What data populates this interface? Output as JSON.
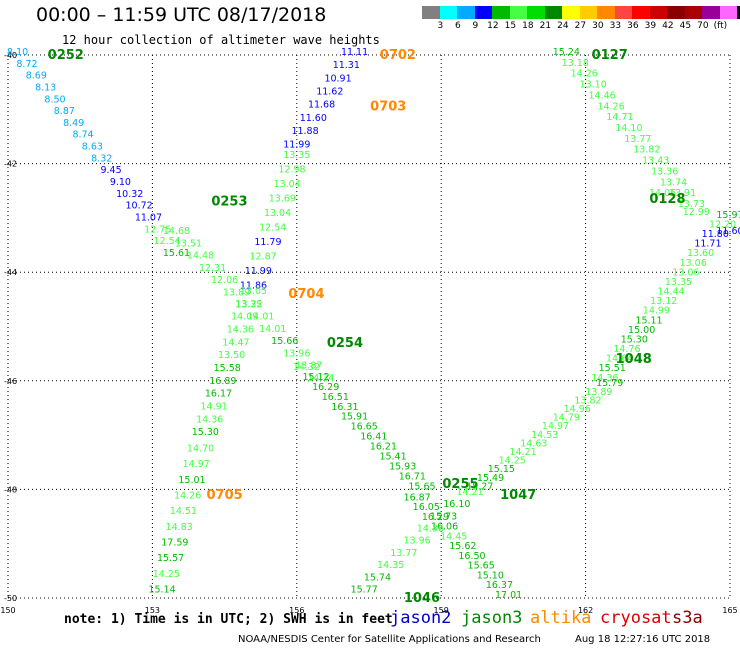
{
  "header": {
    "title": "00:00 – 11:59 UTC 08/17/2018",
    "subtitle": "12 hour collection of altimeter wave heights"
  },
  "legend": {
    "colors": [
      "#808080",
      "#00ffff",
      "#00aaff",
      "#0000ff",
      "#00bb00",
      "#44ff44",
      "#00dd00",
      "#008800",
      "#ffff00",
      "#ffcc00",
      "#ff8800",
      "#ff4444",
      "#ff0000",
      "#cc0000",
      "#880000",
      "#aa0000",
      "#990099",
      "#ff66ff",
      "#000000"
    ],
    "ticks": [
      "3",
      "6",
      "9",
      "12",
      "15",
      "18",
      "21",
      "24",
      "27",
      "30",
      "33",
      "36",
      "39",
      "42",
      "45",
      "70",
      "(ft)"
    ]
  },
  "footer": {
    "note": "note: 1) Time is in UTC; 2) SWH is in feet",
    "satellites": [
      {
        "name": "jason2",
        "color": "#0000cc"
      },
      {
        "name": "jason3",
        "color": "#008800"
      },
      {
        "name": "altika",
        "color": "#ff8800"
      },
      {
        "name": "cryosat",
        "color": "#dd0000"
      },
      {
        "name": "s3a",
        "color": "#880000"
      }
    ],
    "credit": "NOAA/NESDIS Center for Satellite Applications and Research",
    "stamp": "Aug 18 12:27:16 UTC 2018"
  },
  "chart_data": {
    "type": "scatter",
    "title": "00:00 – 11:59 UTC 08/17/2018",
    "subtitle": "12 hour collection of altimeter wave heights",
    "xlabel": "",
    "ylabel": "",
    "xlim": [
      150,
      165
    ],
    "ylim": [
      40,
      50
    ],
    "x_ticks": [
      "150",
      "153",
      "156",
      "159",
      "162",
      "165"
    ],
    "y_ticks": [
      "40",
      "42",
      "44",
      "46",
      "48",
      "50"
    ],
    "grid": true,
    "tracks": [
      {
        "name": "0252",
        "satellite": "jason3",
        "label_pos": [
          151.2,
          40.0
        ],
        "lon_start": 150.2,
        "lat_start": 40.0,
        "lon_end": 153.5,
        "lat_end": 43.7,
        "points": [
          {
            "v": "8.10",
            "c": "#00aaff"
          },
          {
            "v": "8.72",
            "c": "#00aaff"
          },
          {
            "v": "8.69",
            "c": "#00aaff"
          },
          {
            "v": "8.13",
            "c": "#00aaff"
          },
          {
            "v": "8.50",
            "c": "#00aaff"
          },
          {
            "v": "8.87",
            "c": "#00aaff"
          },
          {
            "v": "8.49",
            "c": "#00aaff"
          },
          {
            "v": "8.74",
            "c": "#00aaff"
          },
          {
            "v": "8.63",
            "c": "#00aaff"
          },
          {
            "v": "8.32",
            "c": "#00aaff"
          },
          {
            "v": "9.45",
            "c": "#0000ff"
          },
          {
            "v": "9.10",
            "c": "#0000ff"
          },
          {
            "v": "10.32",
            "c": "#0000ff"
          },
          {
            "v": "10.72",
            "c": "#0000ff"
          },
          {
            "v": "11.07",
            "c": "#0000ff"
          },
          {
            "v": "12.75",
            "c": "#44ff44"
          },
          {
            "v": "12.54",
            "c": "#44ff44"
          },
          {
            "v": "15.61",
            "c": "#00bb00"
          }
        ]
      },
      {
        "name": "0253",
        "satellite": "jason3",
        "label_pos": [
          154.6,
          42.7
        ],
        "lon_start": 153.5,
        "lat_start": 43.3,
        "lon_end": 156.5,
        "lat_end": 46.0,
        "points": [
          {
            "v": "14.68",
            "c": "#44ff44"
          },
          {
            "v": "13.51",
            "c": "#44ff44"
          },
          {
            "v": "14.48",
            "c": "#44ff44"
          },
          {
            "v": "12.31",
            "c": "#44ff44"
          },
          {
            "v": "12.06",
            "c": "#44ff44"
          },
          {
            "v": "13.89",
            "c": "#44ff44"
          },
          {
            "v": "13.35",
            "c": "#44ff44"
          },
          {
            "v": "14.01",
            "c": "#44ff44"
          },
          {
            "v": "14.01",
            "c": "#44ff44"
          },
          {
            "v": "15.66",
            "c": "#00bb00"
          },
          {
            "v": "13.96",
            "c": "#44ff44"
          },
          {
            "v": "13.87",
            "c": "#44ff44"
          },
          {
            "v": "14.34",
            "c": "#44ff44"
          }
        ]
      },
      {
        "name": "0254",
        "satellite": "jason3",
        "label_pos": [
          157.0,
          45.3
        ],
        "lon_start": 156.2,
        "lat_start": 45.8,
        "lon_end": 158.6,
        "lat_end": 48.0,
        "points": [
          {
            "v": "14.32",
            "c": "#44ff44"
          },
          {
            "v": "15.12",
            "c": "#00bb00"
          },
          {
            "v": "16.29",
            "c": "#00bb00"
          },
          {
            "v": "16.51",
            "c": "#00bb00"
          },
          {
            "v": "16.31",
            "c": "#00bb00"
          },
          {
            "v": "15.91",
            "c": "#00bb00"
          },
          {
            "v": "16.65",
            "c": "#00bb00"
          },
          {
            "v": "16.41",
            "c": "#00bb00"
          },
          {
            "v": "16.21",
            "c": "#00bb00"
          },
          {
            "v": "15.41",
            "c": "#00bb00"
          },
          {
            "v": "15.93",
            "c": "#00bb00"
          },
          {
            "v": "16.71",
            "c": "#00bb00"
          },
          {
            "v": "15.65",
            "c": "#00bb00"
          }
        ]
      },
      {
        "name": "0255",
        "satellite": "jason3",
        "label_pos": [
          159.4,
          47.9
        ],
        "lon_start": 158.5,
        "lat_start": 48.2,
        "lon_end": 160.4,
        "lat_end": 50.0,
        "points": [
          {
            "v": "16.87",
            "c": "#00bb00"
          },
          {
            "v": "16.05",
            "c": "#00bb00"
          },
          {
            "v": "16.29",
            "c": "#00bb00"
          },
          {
            "v": "16.06",
            "c": "#00bb00"
          },
          {
            "v": "14.45",
            "c": "#44ff44"
          },
          {
            "v": "15.62",
            "c": "#00bb00"
          },
          {
            "v": "16.50",
            "c": "#00bb00"
          },
          {
            "v": "15.65",
            "c": "#00bb00"
          },
          {
            "v": "15.10",
            "c": "#00bb00"
          },
          {
            "v": "16.37",
            "c": "#00bb00"
          },
          {
            "v": "17.01",
            "c": "#00bb00"
          }
        ]
      },
      {
        "name": "0127",
        "satellite": "jason3",
        "label_pos": [
          162.5,
          40.0
        ],
        "lon_start": 161.6,
        "lat_start": 40.0,
        "lon_end": 164.2,
        "lat_end": 42.8,
        "points": [
          {
            "v": "15.24",
            "c": "#00bb00"
          },
          {
            "v": "13.18",
            "c": "#44ff44"
          },
          {
            "v": "14.26",
            "c": "#44ff44"
          },
          {
            "v": "13.10",
            "c": "#44ff44"
          },
          {
            "v": "14.46",
            "c": "#44ff44"
          },
          {
            "v": "14.26",
            "c": "#44ff44"
          },
          {
            "v": "14.71",
            "c": "#44ff44"
          },
          {
            "v": "14.10",
            "c": "#44ff44"
          },
          {
            "v": "13.77",
            "c": "#44ff44"
          },
          {
            "v": "13.82",
            "c": "#44ff44"
          },
          {
            "v": "13.43",
            "c": "#44ff44"
          },
          {
            "v": "13.36",
            "c": "#44ff44"
          },
          {
            "v": "13.74",
            "c": "#44ff44"
          },
          {
            "v": "13.91",
            "c": "#44ff44"
          },
          {
            "v": "13.73",
            "c": "#44ff44"
          }
        ]
      },
      {
        "name": "0128",
        "satellite": "jason3",
        "label_pos": [
          163.7,
          42.65
        ],
        "lon_start": 163.6,
        "lat_start": 42.6,
        "lon_end": 165.0,
        "lat_end": 43.3,
        "points": [
          {
            "v": "14.06",
            "c": "#44ff44"
          },
          {
            "v": "12.99",
            "c": "#44ff44"
          },
          {
            "v": "11.60",
            "c": "#0000ff"
          }
        ]
      },
      {
        "name": "1048",
        "satellite": "jason3",
        "label_pos": [
          163.0,
          45.6
        ],
        "lon_start": 162.4,
        "lat_start": 46.0,
        "lon_end": 165.0,
        "lat_end": 43.0,
        "points": [
          {
            "v": "14.36",
            "c": "#44ff44"
          },
          {
            "v": "15.51",
            "c": "#00bb00"
          },
          {
            "v": "14.64",
            "c": "#44ff44"
          },
          {
            "v": "14.76",
            "c": "#44ff44"
          },
          {
            "v": "15.30",
            "c": "#00bb00"
          },
          {
            "v": "15.00",
            "c": "#00bb00"
          },
          {
            "v": "15.11",
            "c": "#00bb00"
          },
          {
            "v": "14.99",
            "c": "#44ff44"
          },
          {
            "v": "13.12",
            "c": "#44ff44"
          },
          {
            "v": "14.44",
            "c": "#44ff44"
          },
          {
            "v": "13.35",
            "c": "#44ff44"
          },
          {
            "v": "13.06",
            "c": "#44ff44"
          },
          {
            "v": "13.06",
            "c": "#44ff44"
          },
          {
            "v": "13.60",
            "c": "#44ff44"
          },
          {
            "v": "11.71",
            "c": "#0000ff"
          },
          {
            "v": "11.80",
            "c": "#0000ff"
          },
          {
            "v": "12.20",
            "c": "#44ff44"
          },
          {
            "v": "15.97",
            "c": "#00bb00"
          }
        ]
      },
      {
        "name": "1047",
        "satellite": "jason3",
        "label_pos": [
          160.6,
          48.1
        ],
        "lon_start": 159.8,
        "lat_start": 48.0,
        "lon_end": 162.5,
        "lat_end": 46.1,
        "points": [
          {
            "v": "15.27",
            "c": "#00bb00"
          },
          {
            "v": "15.49",
            "c": "#00bb00"
          },
          {
            "v": "15.15",
            "c": "#00bb00"
          },
          {
            "v": "14.25",
            "c": "#44ff44"
          },
          {
            "v": "14.21",
            "c": "#44ff44"
          },
          {
            "v": "14.63",
            "c": "#44ff44"
          },
          {
            "v": "14.53",
            "c": "#44ff44"
          },
          {
            "v": "14.97",
            "c": "#44ff44"
          },
          {
            "v": "14.79",
            "c": "#44ff44"
          },
          {
            "v": "14.96",
            "c": "#44ff44"
          },
          {
            "v": "13.82",
            "c": "#44ff44"
          },
          {
            "v": "13.89",
            "c": "#44ff44"
          },
          {
            "v": "15.79",
            "c": "#00bb00"
          }
        ]
      },
      {
        "name": "1046",
        "satellite": "jason3",
        "label_pos": [
          158.6,
          50.0
        ],
        "lon_start": 157.4,
        "lat_start": 49.9,
        "lon_end": 159.6,
        "lat_end": 48.1,
        "points": [
          {
            "v": "15.77",
            "c": "#00bb00"
          },
          {
            "v": "15.74",
            "c": "#00bb00"
          },
          {
            "v": "14.35",
            "c": "#44ff44"
          },
          {
            "v": "13.77",
            "c": "#44ff44"
          },
          {
            "v": "13.96",
            "c": "#44ff44"
          },
          {
            "v": "14.36",
            "c": "#44ff44"
          },
          {
            "v": "15.73",
            "c": "#00bb00"
          },
          {
            "v": "16.10",
            "c": "#00bb00"
          },
          {
            "v": "14.21",
            "c": "#44ff44"
          }
        ]
      },
      {
        "name": "0702",
        "satellite": "altika",
        "label_pos": [
          158.1,
          40.0
        ],
        "lon_start": 157.2,
        "lat_start": 40.0,
        "lon_end": 156.0,
        "lat_end": 41.7,
        "points": [
          {
            "v": "11.11",
            "c": "#0000ff"
          },
          {
            "v": "11.31",
            "c": "#0000ff"
          },
          {
            "v": "10.91",
            "c": "#0000ff"
          },
          {
            "v": "11.62",
            "c": "#0000ff"
          },
          {
            "v": "11.68",
            "c": "#0000ff"
          },
          {
            "v": "11.60",
            "c": "#0000ff"
          },
          {
            "v": "11.88",
            "c": "#0000ff"
          },
          {
            "v": "11.99",
            "c": "#0000ff"
          }
        ]
      },
      {
        "name": "0703",
        "satellite": "altika",
        "label_pos": [
          157.9,
          40.95
        ],
        "lon_start": 156.0,
        "lat_start": 41.9,
        "lon_end": 155.1,
        "lat_end": 44.3,
        "points": [
          {
            "v": "13.35",
            "c": "#44ff44"
          },
          {
            "v": "12.98",
            "c": "#44ff44"
          },
          {
            "v": "13.04",
            "c": "#44ff44"
          },
          {
            "v": "13.69",
            "c": "#44ff44"
          },
          {
            "v": "13.04",
            "c": "#44ff44"
          },
          {
            "v": "12.54",
            "c": "#44ff44"
          },
          {
            "v": "11.79",
            "c": "#0000ff"
          },
          {
            "v": "12.87",
            "c": "#44ff44"
          },
          {
            "v": "11.99",
            "c": "#0000ff"
          },
          {
            "v": "11.86",
            "c": "#0000ff"
          }
        ]
      },
      {
        "name": "0704",
        "satellite": "altika",
        "label_pos": [
          156.2,
          44.4
        ],
        "lon_start": 155.1,
        "lat_start": 44.4,
        "lon_end": 154.1,
        "lat_end": 47.0,
        "points": [
          {
            "v": "13.05",
            "c": "#44ff44"
          },
          {
            "v": "13.22",
            "c": "#44ff44"
          },
          {
            "v": "14.09",
            "c": "#44ff44"
          },
          {
            "v": "14.36",
            "c": "#44ff44"
          },
          {
            "v": "14.47",
            "c": "#44ff44"
          },
          {
            "v": "13.50",
            "c": "#44ff44"
          },
          {
            "v": "15.58",
            "c": "#00bb00"
          },
          {
            "v": "16.89",
            "c": "#00bb00"
          },
          {
            "v": "16.17",
            "c": "#00bb00"
          },
          {
            "v": "14.91",
            "c": "#44ff44"
          },
          {
            "v": "14.36",
            "c": "#44ff44"
          },
          {
            "v": "15.30",
            "c": "#00bb00"
          }
        ]
      },
      {
        "name": "0705",
        "satellite": "altika",
        "label_pos": [
          154.5,
          48.1
        ],
        "lon_start": 154.0,
        "lat_start": 47.3,
        "lon_end": 153.2,
        "lat_end": 49.9,
        "points": [
          {
            "v": "14.70",
            "c": "#44ff44"
          },
          {
            "v": "14.97",
            "c": "#44ff44"
          },
          {
            "v": "15.01",
            "c": "#00bb00"
          },
          {
            "v": "14.26",
            "c": "#44ff44"
          },
          {
            "v": "14.51",
            "c": "#44ff44"
          },
          {
            "v": "14.83",
            "c": "#44ff44"
          },
          {
            "v": "17.59",
            "c": "#00bb00"
          },
          {
            "v": "15.57",
            "c": "#00bb00"
          },
          {
            "v": "14.25",
            "c": "#44ff44"
          },
          {
            "v": "15.14",
            "c": "#00bb00"
          }
        ]
      }
    ]
  }
}
